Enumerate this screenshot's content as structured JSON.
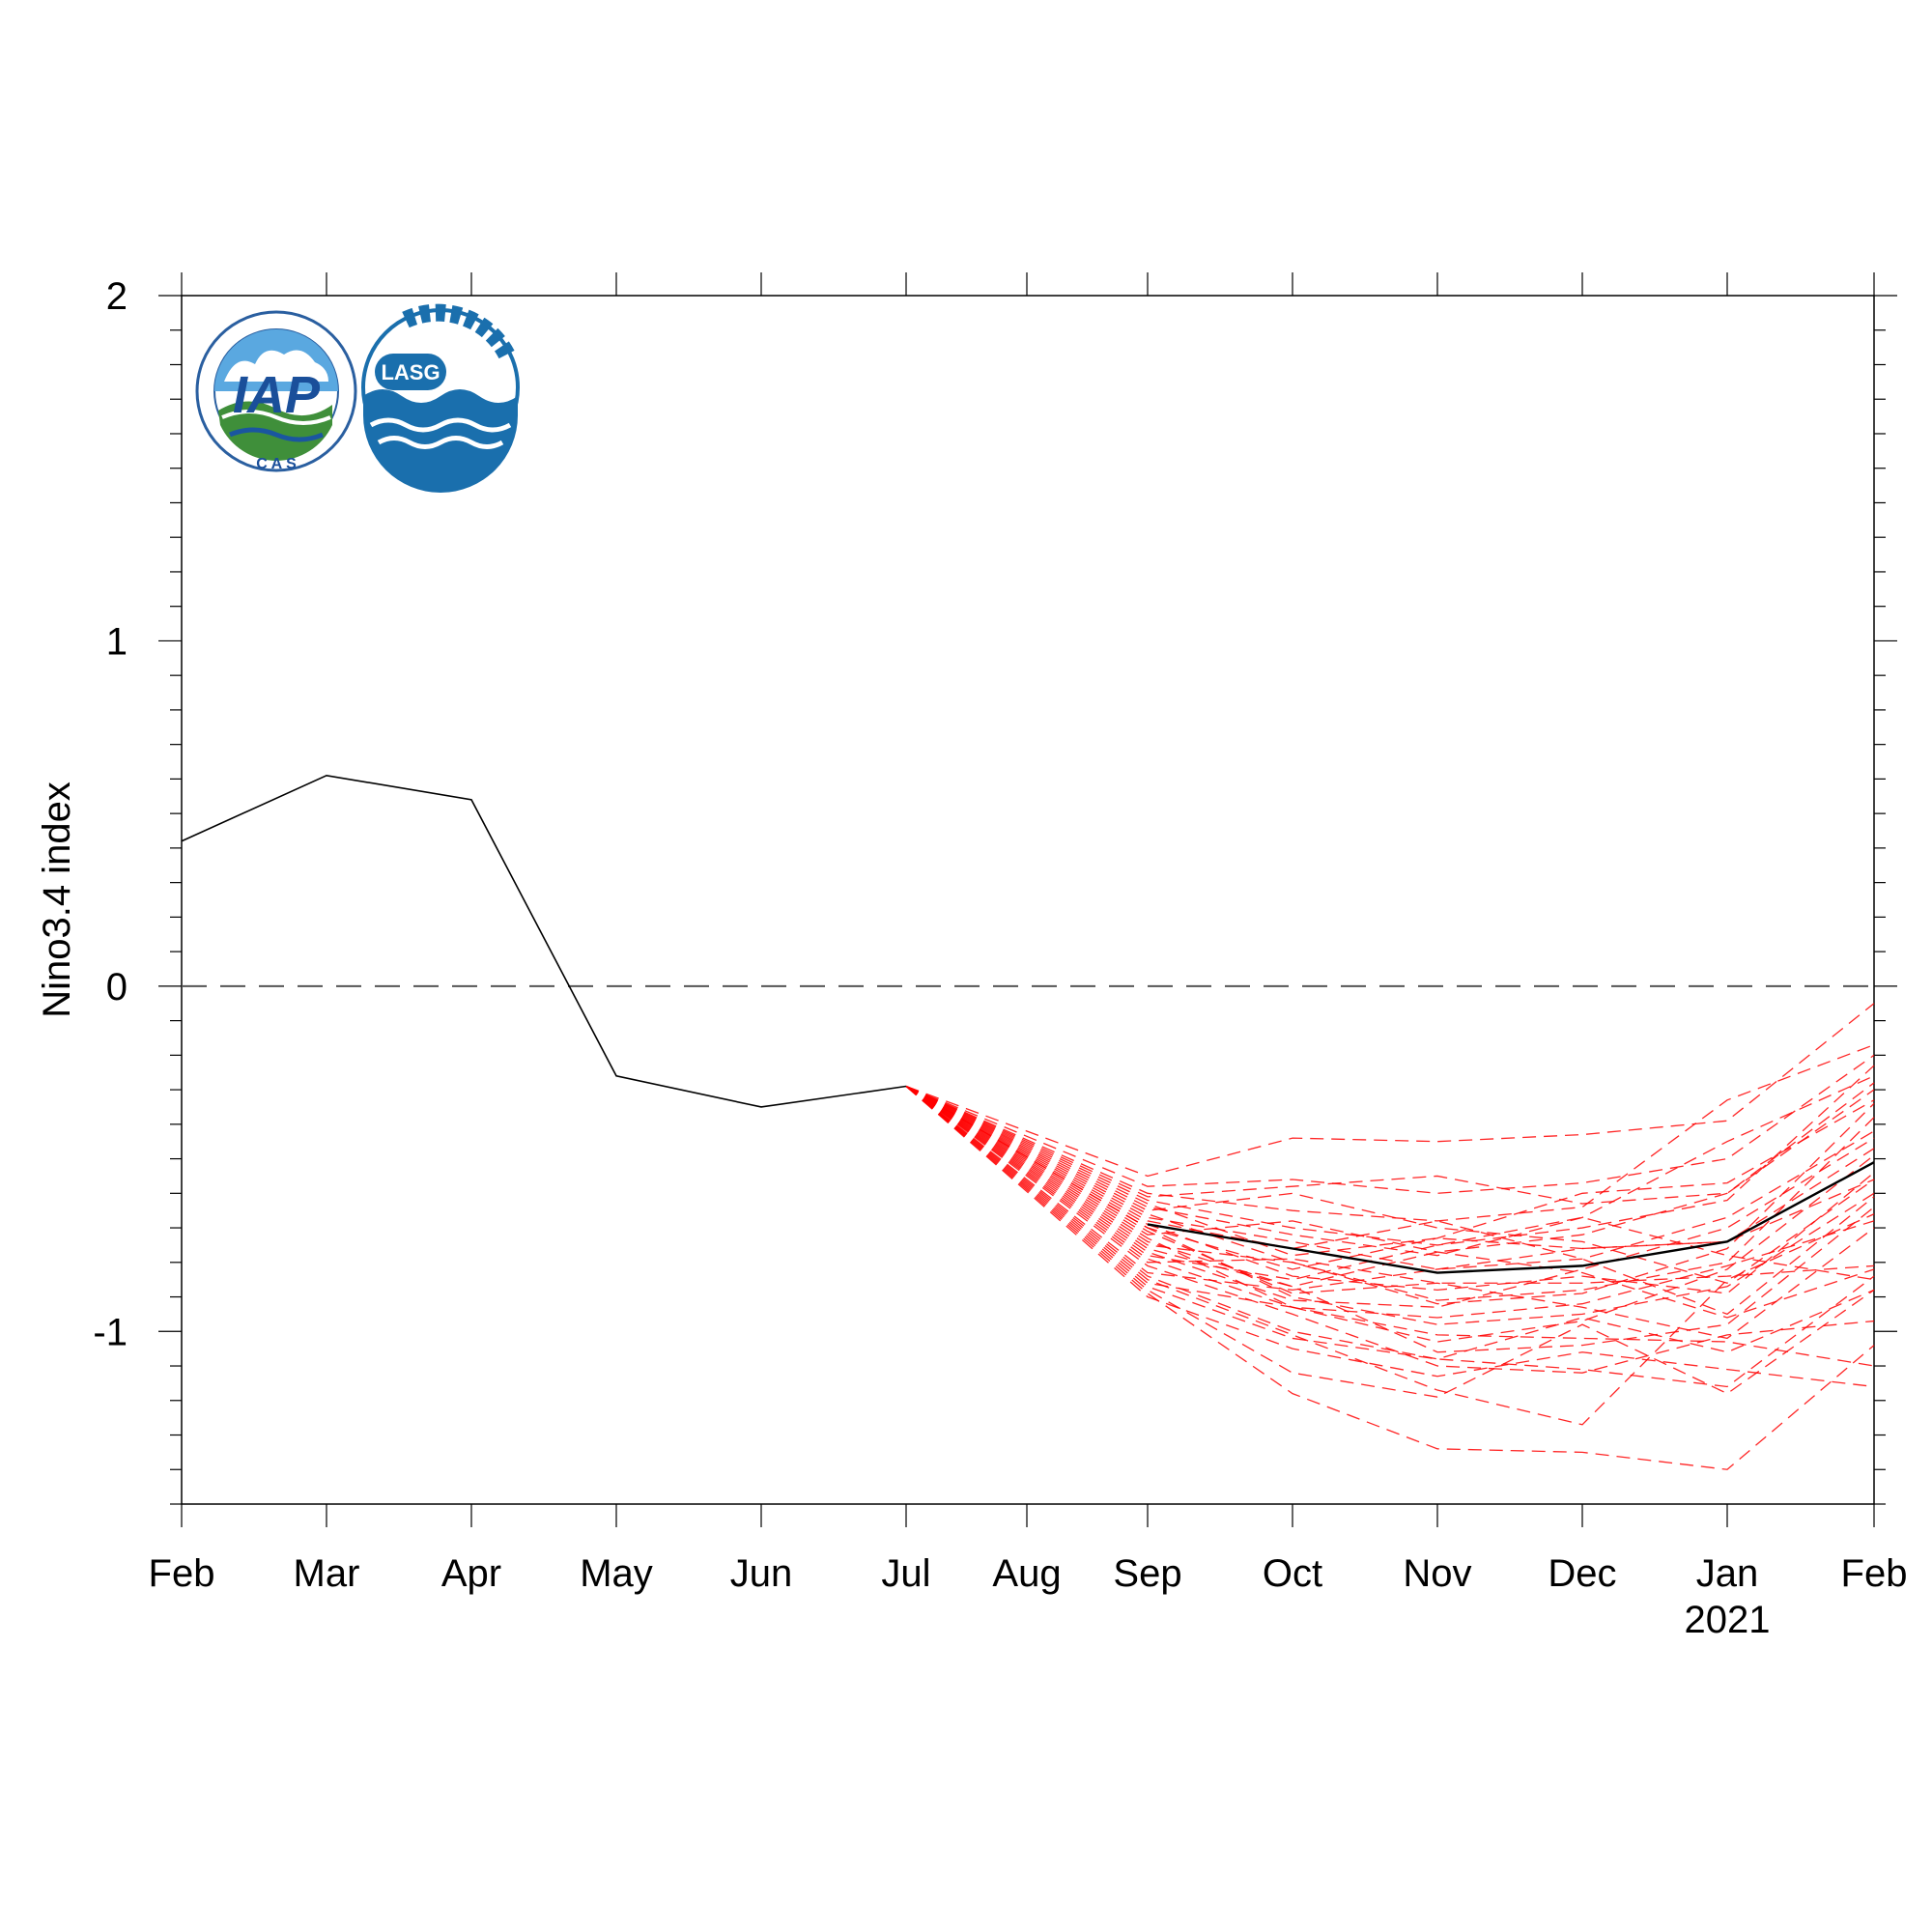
{
  "chart_data": {
    "type": "line",
    "title": "",
    "xlabel": "",
    "ylabel": "Nino3.4 index",
    "ylim": [
      -1.5,
      2
    ],
    "yticks": [
      2,
      1,
      0,
      -1
    ],
    "ytick_labels": [
      "2",
      "1",
      "0",
      "-1"
    ],
    "categories": [
      "Feb",
      "Mar",
      "Apr",
      "May",
      "Jun",
      "Jul",
      "Aug",
      "Sep",
      "Oct",
      "Nov",
      "Dec",
      "Jan",
      "Feb"
    ],
    "year_label": {
      "category_index": 11,
      "text": "2021"
    },
    "zero_line": {
      "value": 0,
      "style": "dashed",
      "color": "#555555"
    },
    "grid": false,
    "legend": "none",
    "logos": [
      "IAP CAS",
      "LASG"
    ],
    "colors": {
      "observed": "#000000",
      "members": "#ff0000",
      "ensemble_mean": "#000000",
      "zero_line": "#555555"
    },
    "series": [
      {
        "role": "observed",
        "x": [
          0,
          1,
          2,
          3,
          4,
          5
        ],
        "values": [
          0.42,
          0.61,
          0.54,
          -0.26,
          -0.35,
          -0.29
        ]
      },
      {
        "role": "ensemble_mean",
        "x": [
          7,
          8,
          9,
          10,
          11,
          12
        ],
        "values": [
          -0.69,
          -0.76,
          -0.83,
          -0.81,
          -0.74,
          -0.51
        ]
      }
    ],
    "members": {
      "start": {
        "x": 5,
        "value": -0.29
      },
      "x": [
        7,
        8,
        9,
        10,
        11,
        12
      ],
      "values": [
        [
          -0.55,
          -0.44,
          -0.45,
          -0.43,
          -0.39,
          -0.05
        ],
        [
          -0.58,
          -0.56,
          -0.6,
          -0.57,
          -0.5,
          -0.2
        ],
        [
          -0.6,
          -0.65,
          -0.68,
          -0.64,
          -0.33,
          -0.17
        ],
        [
          -0.61,
          -0.58,
          -0.55,
          -0.63,
          -0.6,
          -0.3
        ],
        [
          -0.62,
          -0.7,
          -0.75,
          -0.7,
          -0.62,
          -0.23
        ],
        [
          -0.63,
          -0.78,
          -0.73,
          -0.76,
          -0.74,
          -0.47
        ],
        [
          -0.64,
          -0.72,
          -0.78,
          -0.67,
          -0.45,
          -0.26
        ],
        [
          -0.65,
          -0.6,
          -0.7,
          -0.74,
          -0.86,
          -0.56
        ],
        [
          -0.66,
          -0.8,
          -0.91,
          -0.88,
          -0.8,
          -0.38
        ],
        [
          -0.67,
          -0.74,
          -0.82,
          -0.79,
          -0.67,
          -0.42
        ],
        [
          -0.68,
          -0.76,
          -0.68,
          -0.79,
          -0.95,
          -0.61
        ],
        [
          -0.69,
          -0.84,
          -0.88,
          -0.84,
          -0.89,
          -0.54
        ],
        [
          -0.7,
          -0.9,
          -0.98,
          -0.95,
          -0.87,
          -0.6
        ],
        [
          -0.7,
          -0.82,
          -0.73,
          -0.6,
          -0.57,
          -0.33
        ],
        [
          -0.71,
          -0.89,
          -0.86,
          -0.93,
          -1.02,
          -0.7
        ],
        [
          -0.72,
          -0.68,
          -0.77,
          -0.83,
          -0.96,
          -0.82
        ],
        [
          -0.73,
          -0.93,
          -1.03,
          -0.97,
          -0.82,
          -0.49
        ],
        [
          -0.74,
          -0.87,
          -0.77,
          -0.72,
          -0.6,
          -0.28
        ],
        [
          -0.75,
          -0.8,
          -0.92,
          -0.89,
          -0.76,
          -0.34
        ],
        [
          -0.76,
          -0.87,
          -1.06,
          -1.04,
          -0.98,
          -0.64
        ],
        [
          -0.77,
          -0.91,
          -0.93,
          -0.82,
          -0.7,
          -0.44
        ],
        [
          -0.78,
          -0.85,
          -0.75,
          -0.67,
          -0.78,
          -0.85
        ],
        [
          -0.79,
          -0.93,
          -1.01,
          -1.02,
          -1.03,
          -1.1
        ],
        [
          -0.8,
          -0.79,
          -0.86,
          -0.86,
          -0.84,
          -0.81
        ],
        [
          -0.81,
          -0.95,
          -1.1,
          -1.12,
          -1.01,
          -0.97
        ],
        [
          -0.83,
          -0.88,
          -0.82,
          -0.76,
          -0.74,
          -0.56
        ],
        [
          -0.84,
          -1.0,
          -1.08,
          -0.96,
          -1.06,
          -0.88
        ],
        [
          -0.85,
          -1.01,
          -1.17,
          -1.27,
          -0.85,
          -0.66
        ],
        [
          -0.86,
          -0.93,
          -0.96,
          -0.92,
          -0.81,
          -0.68
        ],
        [
          -0.87,
          -1.02,
          -1.08,
          -1.11,
          -1.16,
          -0.84
        ],
        [
          -0.88,
          -1.12,
          -1.19,
          -0.98,
          -1.18,
          -0.88
        ],
        [
          -0.89,
          -1.18,
          -1.34,
          -1.35,
          -1.4,
          -1.04
        ],
        [
          -0.9,
          -1.05,
          -1.13,
          -1.06,
          -1.11,
          -1.16
        ]
      ]
    }
  }
}
